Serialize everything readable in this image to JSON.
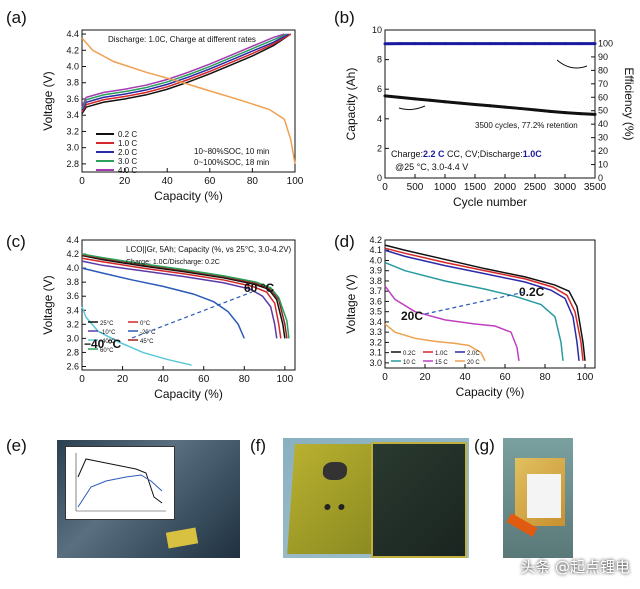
{
  "panel_labels": {
    "a": "(a)",
    "b": "(b)",
    "c": "(c)",
    "d": "(d)",
    "e": "(e)",
    "f": "(f)",
    "g": "(g)"
  },
  "watermark": "头条 @起点锂电",
  "chart_data": [
    {
      "id": "a",
      "type": "line",
      "title": "",
      "xlabel": "Capacity (%)",
      "ylabel": "Voltage (V)",
      "xlim": [
        0,
        100
      ],
      "ylim": [
        2.7,
        4.45
      ],
      "xticks": [
        0,
        20,
        40,
        60,
        80,
        100
      ],
      "yticks": [
        2.8,
        3.0,
        3.2,
        3.4,
        3.6,
        3.8,
        4.0,
        4.2,
        4.4
      ],
      "header": "Discharge: 1.0C, Charge at different rates",
      "notes": [
        "10~80%SOC, 10 min",
        "0~100%SOC, 18 min"
      ],
      "legend": "left",
      "series": [
        {
          "name": "0.2 C",
          "color": "#111111",
          "x": [
            0,
            2,
            10,
            20,
            30,
            40,
            50,
            60,
            70,
            80,
            90,
            98
          ],
          "y": [
            3.42,
            3.5,
            3.56,
            3.6,
            3.65,
            3.72,
            3.81,
            3.91,
            4.02,
            4.13,
            4.26,
            4.4
          ]
        },
        {
          "name": "1.0 C",
          "color": "#d62728",
          "x": [
            0,
            2,
            10,
            20,
            30,
            40,
            50,
            60,
            70,
            80,
            90,
            98
          ],
          "y": [
            3.44,
            3.53,
            3.59,
            3.63,
            3.68,
            3.75,
            3.84,
            3.94,
            4.05,
            4.16,
            4.28,
            4.4
          ]
        },
        {
          "name": "2.0 C",
          "color": "#2a2aa8",
          "x": [
            0,
            2,
            10,
            20,
            30,
            40,
            50,
            60,
            70,
            80,
            90,
            97
          ],
          "y": [
            3.46,
            3.56,
            3.62,
            3.66,
            3.71,
            3.78,
            3.87,
            3.97,
            4.08,
            4.19,
            4.3,
            4.4
          ]
        },
        {
          "name": "3.0 C",
          "color": "#2aa05a",
          "x": [
            0,
            2,
            10,
            20,
            30,
            40,
            50,
            60,
            70,
            80,
            90,
            96
          ],
          "y": [
            3.48,
            3.59,
            3.65,
            3.69,
            3.74,
            3.81,
            3.9,
            4.0,
            4.11,
            4.22,
            4.33,
            4.4
          ]
        },
        {
          "name": "4.0 C",
          "color": "#a23ab0",
          "x": [
            0,
            2,
            10,
            20,
            30,
            40,
            50,
            60,
            70,
            80,
            90,
            95
          ],
          "y": [
            3.5,
            3.62,
            3.68,
            3.72,
            3.77,
            3.84,
            3.93,
            4.03,
            4.14,
            4.25,
            4.36,
            4.4
          ]
        },
        {
          "name": "Discharge",
          "color": "#f0a050",
          "legend": false,
          "x": [
            0,
            5,
            15,
            30,
            45,
            60,
            75,
            88,
            95,
            98,
            100
          ],
          "y": [
            4.35,
            4.2,
            4.06,
            3.93,
            3.82,
            3.7,
            3.58,
            3.47,
            3.35,
            3.1,
            2.8
          ]
        }
      ]
    },
    {
      "id": "b",
      "type": "scatter",
      "title": "",
      "xlabel": "Cycle number",
      "ylabel": "Capacity (Ah)",
      "ylabel_right": "Efficiency (%)",
      "xlim": [
        0,
        3500
      ],
      "ylim": [
        0,
        10
      ],
      "ylim_right": [
        0,
        110
      ],
      "xticks": [
        0,
        500,
        1000,
        1500,
        2000,
        2500,
        3000,
        3500
      ],
      "yticks": [
        0,
        2,
        4,
        6,
        8,
        10
      ],
      "yticks_right": [
        0,
        10,
        20,
        30,
        40,
        50,
        60,
        70,
        80,
        90,
        100
      ],
      "notes": [
        "3500 cycles, 77.2% retention"
      ],
      "condition_parts": [
        "Charge:",
        "2.2 C",
        " CC, CV;Discharge:",
        "1.0C"
      ],
      "condition2": "@25 °C, 3.0-4.4 V",
      "series": [
        {
          "name": "Capacity",
          "axis": "left",
          "color": "#111111",
          "x": [
            0,
            250,
            500,
            750,
            1000,
            1250,
            1500,
            1750,
            2000,
            2250,
            2500,
            2750,
            3000,
            3250,
            3500
          ],
          "y": [
            5.55,
            5.45,
            5.35,
            5.25,
            5.15,
            5.06,
            4.97,
            4.88,
            4.79,
            4.7,
            4.6,
            4.5,
            4.42,
            4.35,
            4.3
          ]
        },
        {
          "name": "Efficiency",
          "axis": "right",
          "color": "#1a1aa0",
          "x": [
            0,
            250,
            500,
            750,
            1000,
            1250,
            1500,
            1750,
            2000,
            2250,
            2500,
            2750,
            3000,
            3250,
            3500
          ],
          "y": [
            99.8,
            99.9,
            99.9,
            99.9,
            99.9,
            99.9,
            99.9,
            99.9,
            99.9,
            99.9,
            99.9,
            99.9,
            99.9,
            99.9,
            99.9
          ]
        }
      ]
    },
    {
      "id": "c",
      "type": "line",
      "title": "",
      "xlabel": "Capacity (%)",
      "ylabel": "Voltage (V)",
      "xlim": [
        0,
        105
      ],
      "ylim": [
        2.55,
        4.4
      ],
      "xticks": [
        0,
        20,
        40,
        60,
        80,
        100
      ],
      "yticks": [
        2.6,
        2.8,
        3.0,
        3.2,
        3.4,
        3.6,
        3.8,
        4.0,
        4.2,
        4.4
      ],
      "header": "LCO||Gr, 5Ah; Capacity (%, vs 25°C, 3.0-4.2V)",
      "header2": "Charge: 1.0C/Discharge:  0.2C",
      "annotations": [
        "60 °C",
        "−40 °C"
      ],
      "legend": "bottom-left",
      "series": [
        {
          "name": "25°C",
          "color": "#111111",
          "x": [
            0,
            10,
            30,
            50,
            70,
            85,
            92,
            96,
            99,
            100
          ],
          "y": [
            4.18,
            4.12,
            4.03,
            3.95,
            3.86,
            3.77,
            3.7,
            3.55,
            3.2,
            3.0
          ]
        },
        {
          "name": "0°C",
          "color": "#d62728",
          "x": [
            0,
            10,
            30,
            50,
            70,
            84,
            91,
            95,
            97,
            98
          ],
          "y": [
            4.14,
            4.09,
            4.0,
            3.92,
            3.83,
            3.74,
            3.66,
            3.5,
            3.2,
            3.0
          ]
        },
        {
          "name": "-10°C",
          "color": "#5a3aa8",
          "x": [
            0,
            10,
            30,
            50,
            70,
            83,
            89,
            93,
            95,
            96
          ],
          "y": [
            4.1,
            4.04,
            3.96,
            3.88,
            3.79,
            3.7,
            3.6,
            3.45,
            3.2,
            3.0
          ]
        },
        {
          "name": "-20°C",
          "color": "#2a5ab8",
          "x": [
            0,
            10,
            25,
            40,
            55,
            65,
            72,
            77,
            80
          ],
          "y": [
            4.0,
            3.93,
            3.83,
            3.74,
            3.63,
            3.52,
            3.38,
            3.2,
            3.0
          ]
        },
        {
          "name": "-40°C",
          "color": "#5bc8d8",
          "x": [
            0,
            2,
            8,
            18,
            30,
            42,
            54
          ],
          "y": [
            3.45,
            3.3,
            3.1,
            2.95,
            2.8,
            2.7,
            2.62
          ]
        },
        {
          "name": "45°C",
          "color": "#9a2020",
          "x": [
            0,
            10,
            30,
            50,
            70,
            86,
            93,
            97,
            100,
            101
          ],
          "y": [
            4.19,
            4.14,
            4.05,
            3.97,
            3.88,
            3.78,
            3.7,
            3.55,
            3.2,
            3.0
          ]
        },
        {
          "name": "60°C",
          "color": "#2aa05a",
          "x": [
            0,
            10,
            30,
            50,
            70,
            86,
            93,
            97,
            101,
            102
          ],
          "y": [
            4.2,
            4.15,
            4.06,
            3.98,
            3.89,
            3.8,
            3.72,
            3.58,
            3.25,
            3.0
          ]
        }
      ]
    },
    {
      "id": "d",
      "type": "line",
      "title": "",
      "xlabel": "Capacity (%)",
      "ylabel": "Voltage (V)",
      "xlim": [
        0,
        105
      ],
      "ylim": [
        2.95,
        4.2
      ],
      "xticks": [
        0,
        20,
        40,
        60,
        80,
        100
      ],
      "yticks": [
        3.0,
        3.1,
        3.2,
        3.3,
        3.4,
        3.5,
        3.6,
        3.7,
        3.8,
        3.9,
        4.0,
        4.1,
        4.2
      ],
      "annotations": [
        "0.2C",
        "20C"
      ],
      "legend": "bottom-left",
      "series": [
        {
          "name": "0.2C",
          "color": "#111111",
          "x": [
            0,
            10,
            30,
            50,
            70,
            85,
            92,
            96,
            99,
            100
          ],
          "y": [
            4.15,
            4.1,
            4.01,
            3.92,
            3.84,
            3.76,
            3.7,
            3.55,
            3.2,
            3.02
          ]
        },
        {
          "name": "1.0C",
          "color": "#d62728",
          "x": [
            0,
            10,
            30,
            50,
            70,
            84,
            91,
            95,
            98,
            99
          ],
          "y": [
            4.12,
            4.07,
            3.98,
            3.9,
            3.82,
            3.74,
            3.66,
            3.5,
            3.2,
            3.02
          ]
        },
        {
          "name": "2.0C",
          "color": "#2a2aa8",
          "x": [
            0,
            10,
            30,
            50,
            70,
            83,
            90,
            94,
            96,
            97
          ],
          "y": [
            4.1,
            4.04,
            3.95,
            3.87,
            3.79,
            3.71,
            3.63,
            3.45,
            3.2,
            3.02
          ]
        },
        {
          "name": "10 C",
          "color": "#2a9aa0",
          "x": [
            0,
            10,
            30,
            50,
            65,
            78,
            85,
            88,
            89
          ],
          "y": [
            3.98,
            3.9,
            3.8,
            3.72,
            3.65,
            3.57,
            3.45,
            3.2,
            3.02
          ]
        },
        {
          "name": "15 C",
          "color": "#c040c0",
          "x": [
            0,
            5,
            15,
            30,
            45,
            55,
            63,
            66,
            67
          ],
          "y": [
            3.75,
            3.62,
            3.5,
            3.42,
            3.38,
            3.36,
            3.3,
            3.15,
            3.02
          ]
        },
        {
          "name": "20 C",
          "color": "#f0a050",
          "x": [
            0,
            5,
            15,
            25,
            35,
            42,
            48,
            50
          ],
          "y": [
            3.38,
            3.3,
            3.24,
            3.21,
            3.19,
            3.17,
            3.1,
            3.02
          ]
        }
      ]
    }
  ]
}
